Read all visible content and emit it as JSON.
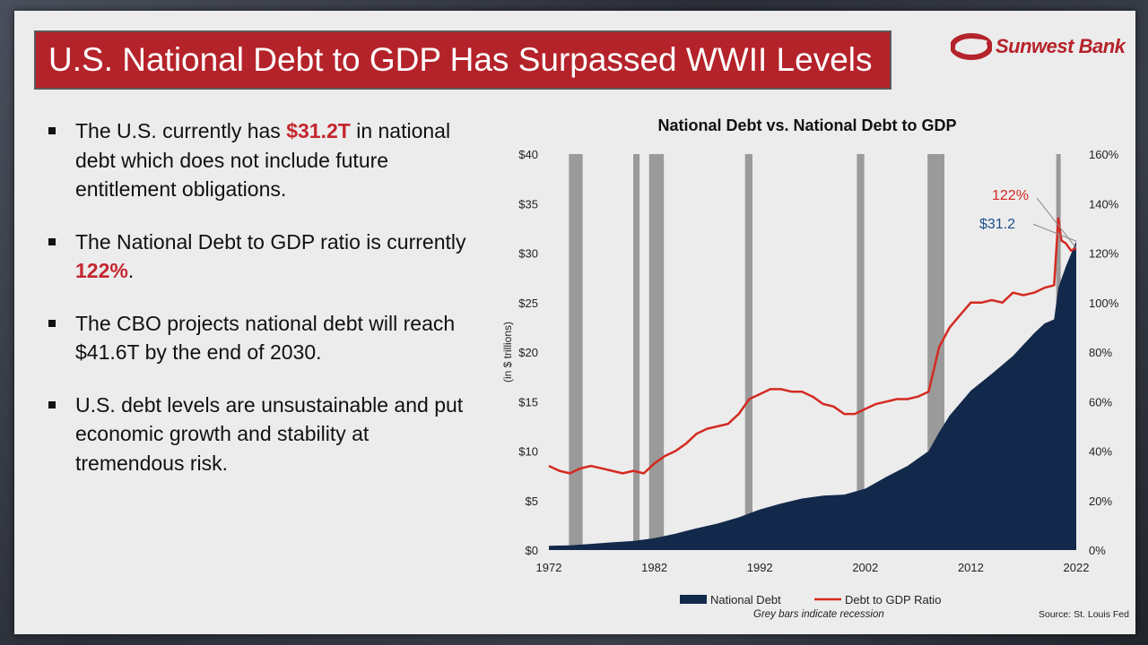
{
  "slide": {
    "title": "U.S. National Debt to GDP Has Surpassed WWII Levels",
    "logo_text": "Sunwest Bank",
    "bullets": [
      {
        "pre": "The U.S. currently has ",
        "hl": "$31.2T",
        "post": " in national debt which does not include future entitlement obligations."
      },
      {
        "pre": "The National Debt to GDP ratio is currently ",
        "hl": "122%",
        "post": "."
      },
      {
        "pre": "The CBO projects national debt will reach $41.6T by the end of 2030.",
        "hl": "",
        "post": ""
      },
      {
        "pre": "U.S. debt levels are unsustainable and put economic growth and stability at tremendous risk.",
        "hl": "",
        "post": ""
      }
    ],
    "footnote": "Grey bars indicate recession",
    "source": "Source: St. Louis Fed"
  },
  "colors": {
    "brand_red": "#b5232a",
    "debt_navy": "#13294b",
    "ratio_red": "#d42a22",
    "recession_grey": "#9a9a9a"
  },
  "chart_data": {
    "type": "area",
    "title": "National Debt vs. National Debt to GDP",
    "ylabel": "(in $ trillions)",
    "y2label": "",
    "xlim": [
      1972,
      2022
    ],
    "ylim": [
      0,
      40
    ],
    "y2lim": [
      0,
      160
    ],
    "x_ticks": [
      "1972",
      "1982",
      "1992",
      "2002",
      "2012",
      "2022"
    ],
    "y_ticks": [
      "$0",
      "$5",
      "$10",
      "$15",
      "$20",
      "$25",
      "$30",
      "$35",
      "$40"
    ],
    "y2_ticks": [
      "0%",
      "20%",
      "40%",
      "60%",
      "80%",
      "100%",
      "120%",
      "140%",
      "160%"
    ],
    "legend": [
      "National Debt",
      "Debt to GDP Ratio"
    ],
    "legend_position": "bottom",
    "recessions": [
      [
        1973.9,
        1975.2
      ],
      [
        1980.0,
        1980.6
      ],
      [
        1981.5,
        1982.9
      ],
      [
        1990.6,
        1991.3
      ],
      [
        2001.2,
        2001.9
      ],
      [
        2007.9,
        2009.5
      ],
      [
        2020.1,
        2020.4
      ]
    ],
    "series": [
      {
        "name": "National Debt",
        "type": "area",
        "axis": "left",
        "x": [
          1972,
          1974,
          1976,
          1978,
          1980,
          1982,
          1984,
          1986,
          1988,
          1990,
          1992,
          1994,
          1996,
          1998,
          2000,
          2002,
          2004,
          2006,
          2008,
          2009,
          2010,
          2012,
          2014,
          2016,
          2018,
          2019,
          2019.9,
          2020.3,
          2021,
          2022
        ],
        "values": [
          0.43,
          0.48,
          0.62,
          0.78,
          0.91,
          1.2,
          1.66,
          2.2,
          2.68,
          3.3,
          4.1,
          4.7,
          5.2,
          5.5,
          5.6,
          6.2,
          7.4,
          8.5,
          10.0,
          11.9,
          13.6,
          16.1,
          17.8,
          19.6,
          21.9,
          22.9,
          23.3,
          26.5,
          28.6,
          31.2
        ]
      },
      {
        "name": "Debt to GDP Ratio",
        "type": "line",
        "axis": "right",
        "x": [
          1972,
          1973,
          1974,
          1975,
          1976,
          1977,
          1978,
          1979,
          1980,
          1981,
          1982,
          1983,
          1984,
          1985,
          1986,
          1987,
          1988,
          1989,
          1990,
          1991,
          1992,
          1993,
          1994,
          1995,
          1996,
          1997,
          1998,
          1999,
          2000,
          2001,
          2002,
          2003,
          2004,
          2005,
          2006,
          2007,
          2008,
          2009,
          2010,
          2011,
          2012,
          2013,
          2014,
          2015,
          2016,
          2017,
          2018,
          2019,
          2019.9,
          2020.3,
          2020.6,
          2021,
          2021.5,
          2022
        ],
        "values": [
          34,
          32,
          31,
          33,
          34,
          33,
          32,
          31,
          32,
          31,
          35,
          38,
          40,
          43,
          47,
          49,
          50,
          51,
          55,
          61,
          63,
          65,
          65,
          64,
          64,
          62,
          59,
          58,
          55,
          55,
          57,
          59,
          60,
          61,
          61,
          62,
          64,
          82,
          90,
          95,
          100,
          100,
          101,
          100,
          104,
          103,
          104,
          106,
          107,
          134,
          125,
          124,
          121,
          122
        ]
      }
    ],
    "annotations": [
      {
        "text": "122%",
        "x": 2022,
        "y": 122,
        "axis": "right",
        "color": "#d42a22"
      },
      {
        "text": "$31.2",
        "x": 2022,
        "y": 31.2,
        "axis": "left",
        "color": "#1f4f8a"
      }
    ]
  }
}
